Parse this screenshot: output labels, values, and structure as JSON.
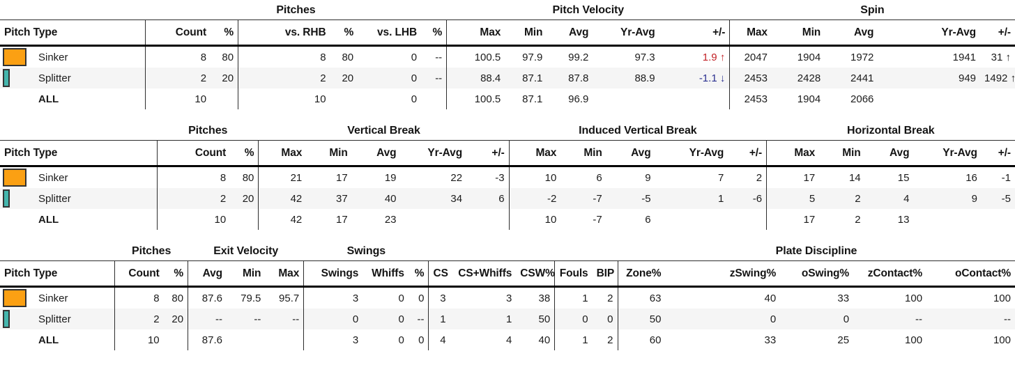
{
  "colors": {
    "sinker": "#FBA013",
    "splitter": "#45B6AD",
    "positive": "#C22126",
    "negative": "#2A2F8F",
    "stripe": "#F5F5F5",
    "text": "#1C1C1C",
    "line": "#2C2C2C"
  },
  "tables": [
    {
      "name": "pitches-velocity-spin",
      "titles": [
        {
          "text": "",
          "span": 1
        },
        {
          "text": "Pitches",
          "span": 6
        },
        {
          "text": "Pitch Velocity",
          "span": 5
        },
        {
          "text": "Spin",
          "span": 5
        }
      ],
      "columns": [
        {
          "label": "Pitch Type",
          "align": "left",
          "width": 14.2,
          "divider": false
        },
        {
          "label": "Count",
          "align": "right",
          "width": 6.4,
          "divider": true
        },
        {
          "label": "%",
          "align": "right",
          "width": 2.7,
          "divider": false
        },
        {
          "label": "vs. RHB",
          "align": "right",
          "width": 9.0,
          "divider": true
        },
        {
          "label": "%",
          "align": "right",
          "width": 2.7,
          "divider": false
        },
        {
          "label": "vs. LHB",
          "align": "right",
          "width": 6.2,
          "divider": false
        },
        {
          "label": "%",
          "align": "right",
          "width": 2.5,
          "divider": false
        },
        {
          "label": "Max",
          "align": "right",
          "width": 5.7,
          "divider": true
        },
        {
          "label": "Min",
          "align": "right",
          "width": 4.1,
          "divider": false
        },
        {
          "label": "Avg",
          "align": "right",
          "width": 4.5,
          "divider": false
        },
        {
          "label": "Yr-Avg",
          "align": "right",
          "width": 6.5,
          "divider": false
        },
        {
          "label": "+/-",
          "align": "right",
          "width": 6.9,
          "divider": false
        },
        {
          "label": "Max",
          "align": "right",
          "width": 4.1,
          "divider": true
        },
        {
          "label": "Min",
          "align": "right",
          "width": 5.2,
          "divider": false
        },
        {
          "label": "Avg",
          "align": "right",
          "width": 5.2,
          "divider": false
        },
        {
          "label": "Yr-Avg",
          "align": "right",
          "width": 10.0,
          "divider": false
        },
        {
          "label": "+/-",
          "align": "right",
          "width": 3.4,
          "divider": false
        }
      ],
      "rows": [
        {
          "label": "Sinker",
          "bold": false,
          "striped": false,
          "swatch": "sinker",
          "swatch_pct": 80,
          "cells": [
            "8",
            "80",
            "8",
            "80",
            "0",
            "--",
            "100.5",
            "97.9",
            "99.2",
            "97.3",
            {
              "text": "1.9 ↑",
              "color": "pos"
            },
            "2047",
            "1904",
            "1972",
            "1941",
            "31 ↑"
          ]
        },
        {
          "label": "Splitter",
          "bold": false,
          "striped": true,
          "swatch": "splitter",
          "swatch_pct": 20,
          "cells": [
            "2",
            "20",
            "2",
            "20",
            "0",
            "--",
            "88.4",
            "87.1",
            "87.8",
            "88.9",
            {
              "text": "-1.1 ↓",
              "color": "neg"
            },
            "2453",
            "2428",
            "2441",
            "949",
            "1492 ↑"
          ]
        },
        {
          "label": "ALL",
          "bold": true,
          "striped": false,
          "swatch": null,
          "swatch_pct": 0,
          "cells": [
            "10",
            "",
            "10",
            "",
            "0",
            "",
            "100.5",
            "87.1",
            "96.9",
            "",
            "",
            "2453",
            "1904",
            "2066",
            "",
            ""
          ]
        }
      ]
    },
    {
      "name": "vertical-induced-horizontal-break",
      "titles": [
        {
          "text": "",
          "span": 1
        },
        {
          "text": "Pitches",
          "span": 2
        },
        {
          "text": "Vertical Break",
          "span": 5
        },
        {
          "text": "Induced Vertical Break",
          "span": 5
        },
        {
          "text": "Horizontal Break",
          "span": 5
        }
      ],
      "columns": [
        {
          "label": "Pitch Type",
          "align": "left",
          "width": 15.5,
          "divider": false
        },
        {
          "label": "Count",
          "align": "right",
          "width": 7.2,
          "divider": true
        },
        {
          "label": "%",
          "align": "right",
          "width": 2.8,
          "divider": false
        },
        {
          "label": "Max",
          "align": "right",
          "width": 4.7,
          "divider": true
        },
        {
          "label": "Min",
          "align": "right",
          "width": 4.5,
          "divider": false
        },
        {
          "label": "Avg",
          "align": "right",
          "width": 4.8,
          "divider": false
        },
        {
          "label": "Yr-Avg",
          "align": "right",
          "width": 6.5,
          "divider": false
        },
        {
          "label": "+/-",
          "align": "right",
          "width": 4.2,
          "divider": false
        },
        {
          "label": "Max",
          "align": "right",
          "width": 5.1,
          "divider": true
        },
        {
          "label": "Min",
          "align": "right",
          "width": 4.5,
          "divider": false
        },
        {
          "label": "Avg",
          "align": "right",
          "width": 4.8,
          "divider": false
        },
        {
          "label": "Yr-Avg",
          "align": "right",
          "width": 7.2,
          "divider": false
        },
        {
          "label": "+/-",
          "align": "right",
          "width": 3.8,
          "divider": false
        },
        {
          "label": "Max",
          "align": "right",
          "width": 5.2,
          "divider": true
        },
        {
          "label": "Min",
          "align": "right",
          "width": 4.5,
          "divider": false
        },
        {
          "label": "Avg",
          "align": "right",
          "width": 4.8,
          "divider": false
        },
        {
          "label": "Yr-Avg",
          "align": "right",
          "width": 6.7,
          "divider": false
        },
        {
          "label": "+/-",
          "align": "right",
          "width": 3.3,
          "divider": false
        }
      ],
      "rows": [
        {
          "label": "Sinker",
          "bold": false,
          "striped": false,
          "swatch": "sinker",
          "swatch_pct": 80,
          "cells": [
            "8",
            "80",
            "21",
            "17",
            "19",
            "22",
            "-3",
            "10",
            "6",
            "9",
            "7",
            "2",
            "17",
            "14",
            "15",
            "16",
            "-1"
          ]
        },
        {
          "label": "Splitter",
          "bold": false,
          "striped": true,
          "swatch": "splitter",
          "swatch_pct": 20,
          "cells": [
            "2",
            "20",
            "42",
            "37",
            "40",
            "34",
            "6",
            "-2",
            "-7",
            "-5",
            "1",
            "-6",
            "5",
            "2",
            "4",
            "9",
            "-5"
          ]
        },
        {
          "label": "ALL",
          "bold": true,
          "striped": false,
          "swatch": null,
          "swatch_pct": 0,
          "cells": [
            "10",
            "",
            "42",
            "17",
            "23",
            "",
            "",
            "10",
            "-7",
            "6",
            "",
            "",
            "17",
            "2",
            "13",
            "",
            ""
          ]
        }
      ]
    },
    {
      "name": "exit-velocity-swings-plate-discipline",
      "titles": [
        {
          "text": "",
          "span": 1
        },
        {
          "text": "Pitches",
          "span": 2
        },
        {
          "text": "Exit Velocity",
          "span": 3
        },
        {
          "text": "Swings",
          "span": 3
        },
        {
          "text": "",
          "span": 3
        },
        {
          "text": "",
          "span": 2
        },
        {
          "text": "Plate Discipline",
          "span": 5
        }
      ],
      "columns": [
        {
          "label": "Pitch Type",
          "align": "left",
          "width": 11.3,
          "divider": false
        },
        {
          "label": "Count",
          "align": "right",
          "width": 4.8,
          "divider": true
        },
        {
          "label": "%",
          "align": "right",
          "width": 2.4,
          "divider": false
        },
        {
          "label": "Avg",
          "align": "right",
          "width": 3.8,
          "divider": true
        },
        {
          "label": "Min",
          "align": "right",
          "width": 3.8,
          "divider": false
        },
        {
          "label": "Max",
          "align": "right",
          "width": 3.8,
          "divider": false
        },
        {
          "label": "Swings",
          "align": "right",
          "width": 5.8,
          "divider": true
        },
        {
          "label": "Whiffs",
          "align": "right",
          "width": 4.5,
          "divider": false
        },
        {
          "label": "%",
          "align": "right",
          "width": 2.0,
          "divider": false
        },
        {
          "label": "CS",
          "align": "right",
          "width": 2.1,
          "divider": true
        },
        {
          "label": "CS+Whiffs",
          "align": "right",
          "width": 6.5,
          "divider": false
        },
        {
          "label": "CSW%",
          "align": "right",
          "width": 3.8,
          "divider": false
        },
        {
          "label": "Fouls",
          "align": "right",
          "width": 3.7,
          "divider": true
        },
        {
          "label": "BIP",
          "align": "right",
          "width": 2.5,
          "divider": false
        },
        {
          "label": "Zone%",
          "align": "right",
          "width": 4.7,
          "divider": true
        },
        {
          "label": "zSwing%",
          "align": "right",
          "width": 11.3,
          "divider": false
        },
        {
          "label": "oSwing%",
          "align": "right",
          "width": 7.2,
          "divider": false
        },
        {
          "label": "zContact%",
          "align": "right",
          "width": 7.2,
          "divider": false
        },
        {
          "label": "oContact%",
          "align": "right",
          "width": 8.7,
          "divider": false
        }
      ],
      "rows": [
        {
          "label": "Sinker",
          "bold": false,
          "striped": false,
          "swatch": "sinker",
          "swatch_pct": 80,
          "cells": [
            "8",
            "80",
            "87.6",
            "79.5",
            "95.7",
            "3",
            "0",
            "0",
            "3",
            "3",
            "38",
            "1",
            "2",
            "63",
            "40",
            "33",
            "100",
            "100"
          ]
        },
        {
          "label": "Splitter",
          "bold": false,
          "striped": true,
          "swatch": "splitter",
          "swatch_pct": 20,
          "cells": [
            "2",
            "20",
            "--",
            "--",
            "--",
            "0",
            "0",
            "--",
            "1",
            "1",
            "50",
            "0",
            "0",
            "50",
            "0",
            "0",
            "--",
            "--"
          ]
        },
        {
          "label": "ALL",
          "bold": true,
          "striped": false,
          "swatch": null,
          "swatch_pct": 0,
          "cells": [
            "10",
            "",
            "87.6",
            "",
            "",
            "3",
            "0",
            "0",
            "4",
            "4",
            "40",
            "1",
            "2",
            "60",
            "33",
            "25",
            "100",
            "100"
          ]
        }
      ]
    }
  ]
}
